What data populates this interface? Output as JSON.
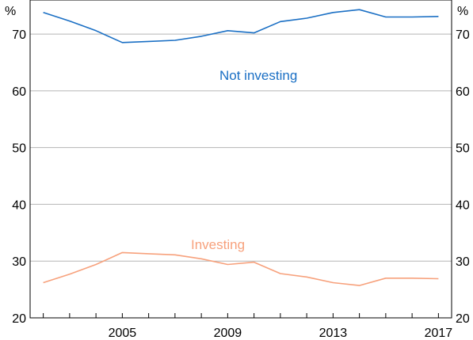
{
  "chart_data": {
    "type": "line",
    "unit_left": "%",
    "unit_right": "%",
    "x_ticks": [
      2005,
      2009,
      2013,
      2017
    ],
    "y_ticks": [
      20,
      30,
      40,
      50,
      60,
      70
    ],
    "xlim": [
      2001.5,
      2017.5
    ],
    "ylim": [
      20,
      76
    ],
    "grid": true,
    "series": [
      {
        "name": "Not investing",
        "color": "#1a6fc4",
        "x": [
          2002,
          2003,
          2004,
          2005,
          2006,
          2007,
          2008,
          2009,
          2010,
          2011,
          2012,
          2013,
          2014,
          2015,
          2016,
          2017
        ],
        "values": [
          73.8,
          72.3,
          70.6,
          68.5,
          68.7,
          68.9,
          69.6,
          70.6,
          70.2,
          72.2,
          72.8,
          73.8,
          74.3,
          73.0,
          73.0,
          73.1
        ]
      },
      {
        "name": "Investing",
        "color": "#f7a17c",
        "x": [
          2002,
          2003,
          2004,
          2005,
          2006,
          2007,
          2008,
          2009,
          2010,
          2011,
          2012,
          2013,
          2014,
          2015,
          2016,
          2017
        ],
        "values": [
          26.2,
          27.7,
          29.4,
          31.5,
          31.3,
          31.1,
          30.4,
          29.4,
          29.8,
          27.8,
          27.2,
          26.2,
          25.7,
          27.0,
          27.0,
          26.9
        ]
      }
    ]
  }
}
